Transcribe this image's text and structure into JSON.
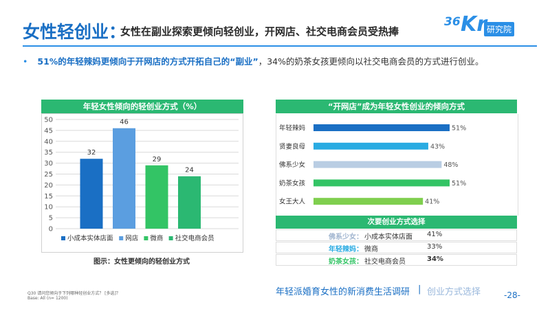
{
  "header": {
    "title": "女性轻创业：",
    "subtitle": "女性在副业探索更倾向轻创业，开网店、社交电商会员受热捧",
    "logo_number": "36",
    "logo_kr": "Kr",
    "logo_badge": "研究院"
  },
  "bullet": {
    "highlight": "51%的年轻辣妈更倾向于开网店的方式开拓自己的“副业”",
    "rest": "，34%的奶茶女孩更倾向以社交电商会员的方式进行创业。"
  },
  "colors": {
    "brand_blue": "#1a6fc4",
    "header_green": "#2bb872"
  },
  "chart_data": [
    {
      "type": "bar",
      "title": "年轻女性倾向的轻创业方式（%）",
      "categories": [
        "小成本实体店面",
        "网店",
        "微商",
        "社交电商会员"
      ],
      "values": [
        32,
        46,
        29,
        24
      ],
      "colors": [
        "#1a6fc4",
        "#5b9ee0",
        "#33c465",
        "#2bb872"
      ],
      "ylim": [
        0,
        50
      ],
      "yticks": [
        0,
        5,
        10,
        15,
        20,
        25,
        30,
        35,
        40,
        45,
        50
      ],
      "grid": true,
      "legend": "bottom",
      "caption": "图示：女性更倾向的轻创业方式"
    },
    {
      "type": "bar",
      "orientation": "horizontal",
      "title": "“开网店”成为年轻女性创业的倾向方式",
      "categories": [
        "年轻辣妈",
        "贤妻良母",
        "佛系少女",
        "奶茶女孩",
        "女王大人"
      ],
      "values": [
        51,
        43,
        48,
        51,
        41
      ],
      "colors": [
        "#1a6fc4",
        "#29abe2",
        "#b9cde3",
        "#33c465",
        "#7fcf4e"
      ],
      "xlim": [
        0,
        51
      ]
    }
  ],
  "secondary": {
    "title": "次要创业方式选择",
    "rows": [
      {
        "label": "佛系少女：",
        "value": "小成本实体店面",
        "pct": "41%",
        "label_color": "#9fb4cf",
        "bold_pct": false
      },
      {
        "label": "年轻辣妈：",
        "value": "微商",
        "pct": "33%",
        "label_color": "#29abe2",
        "bold_pct": false
      },
      {
        "label": "奶茶女孩：",
        "value": "社交电商会员",
        "pct": "34%",
        "label_color": "#33c465",
        "bold_pct": true
      }
    ]
  },
  "footnote": {
    "line1": "Q30 请问您倾向于下列哪种轻创业方式？ [多选]？",
    "line2": "Base: All (n= 1200)"
  },
  "footer": {
    "title": "年轻派婚育女性的新消费生活调研",
    "separator": "|",
    "subtitle": "创业方式选择",
    "page": "-28-"
  }
}
